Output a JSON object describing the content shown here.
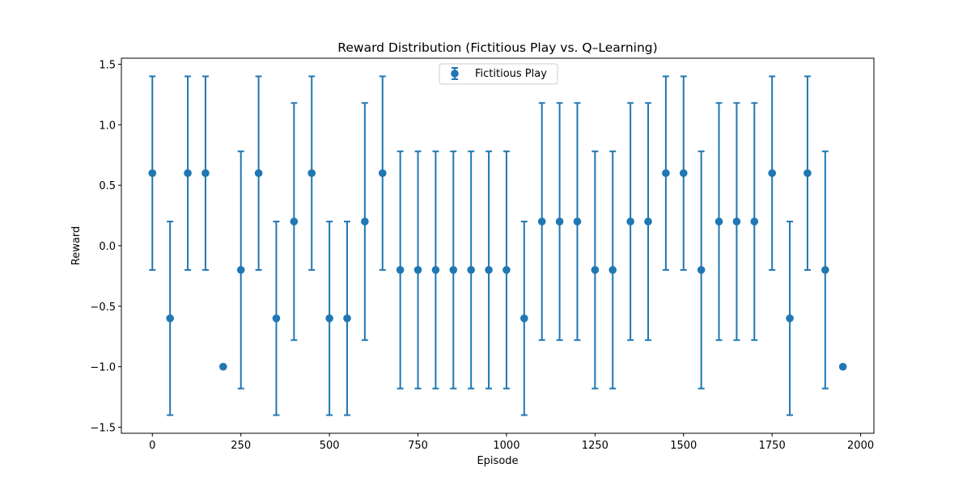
{
  "chart_data": {
    "type": "scatter",
    "title": "Reward Distribution (Fictitious Play vs. Q–Learning)",
    "xlabel": "Episode",
    "ylabel": "Reward",
    "xlim": [
      -87.5,
      2037.5
    ],
    "ylim": [
      -1.55,
      1.55
    ],
    "xticks": [
      0,
      250,
      500,
      750,
      1000,
      1250,
      1500,
      1750,
      2000
    ],
    "xtick_labels": [
      "0",
      "250",
      "500",
      "750",
      "1000",
      "1250",
      "1500",
      "1750",
      "2000"
    ],
    "yticks": [
      -1.5,
      -1.0,
      -0.5,
      0.0,
      0.5,
      1.0,
      1.5
    ],
    "ytick_labels": [
      "−1.5",
      "−1.0",
      "−0.5",
      "0.0",
      "0.5",
      "1.0",
      "1.5"
    ],
    "grid": false,
    "legend_position": "top-center",
    "color": "#1f77b4",
    "series": [
      {
        "name": "Fictitious Play",
        "x": [
          0,
          50,
          100,
          150,
          200,
          250,
          300,
          350,
          400,
          450,
          500,
          550,
          600,
          650,
          700,
          750,
          800,
          850,
          900,
          950,
          1000,
          1050,
          1100,
          1150,
          1200,
          1250,
          1300,
          1350,
          1400,
          1450,
          1500,
          1550,
          1600,
          1650,
          1700,
          1750,
          1800,
          1850,
          1900,
          1950
        ],
        "y": [
          0.6,
          -0.6,
          0.6,
          0.6,
          -1.0,
          -0.2,
          0.6,
          -0.6,
          0.2,
          0.6,
          -0.6,
          -0.6,
          0.2,
          0.6,
          -0.2,
          -0.2,
          -0.2,
          -0.2,
          -0.2,
          -0.2,
          -0.2,
          -0.6,
          0.2,
          0.2,
          0.2,
          -0.2,
          -0.2,
          0.2,
          0.2,
          0.6,
          0.6,
          -0.2,
          0.2,
          0.2,
          0.2,
          0.6,
          -0.6,
          0.6,
          -0.2,
          -1.0
        ],
        "error": [
          0.8,
          0.8,
          0.8,
          0.8,
          0.0,
          0.98,
          0.8,
          0.8,
          0.98,
          0.8,
          0.8,
          0.8,
          0.98,
          0.8,
          0.98,
          0.98,
          0.98,
          0.98,
          0.98,
          0.98,
          0.98,
          0.8,
          0.98,
          0.98,
          0.98,
          0.98,
          0.98,
          0.98,
          0.98,
          0.8,
          0.8,
          0.98,
          0.98,
          0.98,
          0.98,
          0.8,
          0.8,
          0.8,
          0.98,
          0.0
        ]
      }
    ]
  }
}
